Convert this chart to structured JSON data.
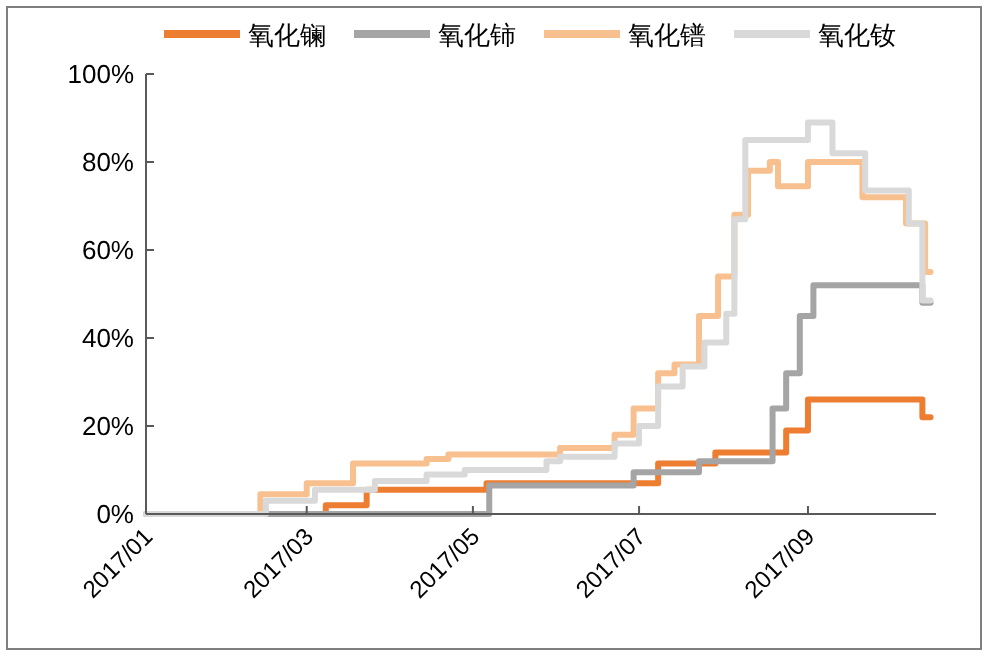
{
  "chart_data": {
    "type": "step",
    "legend": "top",
    "marker": "none",
    "line_style": "solid",
    "grid": false,
    "xlim": [
      "2017-01-01",
      "2017-10-18"
    ],
    "xticks": [
      {
        "value": "2017-01",
        "label": "2017/01"
      },
      {
        "value": "2017-03",
        "label": "2017/03"
      },
      {
        "value": "2017-05",
        "label": "2017/05"
      },
      {
        "value": "2017-07",
        "label": "2017/07"
      },
      {
        "value": "2017-09",
        "label": "2017/09"
      }
    ],
    "ylim": [
      0,
      100
    ],
    "yticks": [
      {
        "value": 0,
        "label": "0%"
      },
      {
        "value": 20,
        "label": "20%"
      },
      {
        "value": 40,
        "label": "40%"
      },
      {
        "value": 60,
        "label": "60%"
      },
      {
        "value": 80,
        "label": "80%"
      },
      {
        "value": 100,
        "label": "100%"
      }
    ],
    "series": [
      {
        "name": "氧化镧",
        "color": "#ed7d31",
        "x": [
          "2017-01-01",
          "2017-03-08",
          "2017-03-23",
          "2017-05-06",
          "2017-07-08",
          "2017-07-29",
          "2017-08-24",
          "2017-09-01",
          "2017-10-13",
          "2017-10-16"
        ],
        "values": [
          0,
          2,
          5.5,
          7,
          11.5,
          14,
          19,
          26,
          22,
          22
        ]
      },
      {
        "name": "氧化铈",
        "color": "#a5a5a5",
        "x": [
          "2017-01-01",
          "2017-05-07",
          "2017-06-29",
          "2017-07-23",
          "2017-08-19",
          "2017-08-24",
          "2017-08-29",
          "2017-09-03",
          "2017-10-13",
          "2017-10-16"
        ],
        "values": [
          0,
          6.5,
          9.5,
          12,
          24,
          32,
          45,
          52,
          48,
          48
        ]
      },
      {
        "name": "氧化镨",
        "color": "#f9c08f",
        "x": [
          "2017-01-01",
          "2017-02-12",
          "2017-03-01",
          "2017-03-18",
          "2017-04-14",
          "2017-04-22",
          "2017-06-02",
          "2017-06-22",
          "2017-06-29",
          "2017-07-08",
          "2017-07-14",
          "2017-07-23",
          "2017-07-30",
          "2017-08-05",
          "2017-08-10",
          "2017-08-18",
          "2017-08-21",
          "2017-09-01",
          "2017-09-21",
          "2017-10-07",
          "2017-10-14",
          "2017-10-16"
        ],
        "values": [
          0,
          4.5,
          7,
          11.5,
          12.5,
          13.5,
          15,
          18,
          24,
          32,
          34,
          45,
          54,
          68,
          78,
          80,
          74.5,
          80,
          72,
          66,
          55,
          55
        ]
      },
      {
        "name": "氧化钕",
        "color": "#d9d9d9",
        "x": [
          "2017-01-01",
          "2017-02-14",
          "2017-03-04",
          "2017-03-26",
          "2017-04-14",
          "2017-04-28",
          "2017-05-28",
          "2017-06-02",
          "2017-06-22",
          "2017-07-01",
          "2017-07-08",
          "2017-07-17",
          "2017-07-25",
          "2017-08-02",
          "2017-08-05",
          "2017-08-09",
          "2017-09-01",
          "2017-09-10",
          "2017-09-22",
          "2017-10-08",
          "2017-10-13",
          "2017-10-16"
        ],
        "values": [
          0,
          3,
          5.5,
          7.5,
          9,
          10,
          12,
          13,
          16,
          20,
          29,
          33.5,
          39,
          45.5,
          67,
          85,
          89,
          82,
          73.5,
          66,
          48.5,
          48.5
        ]
      }
    ]
  }
}
